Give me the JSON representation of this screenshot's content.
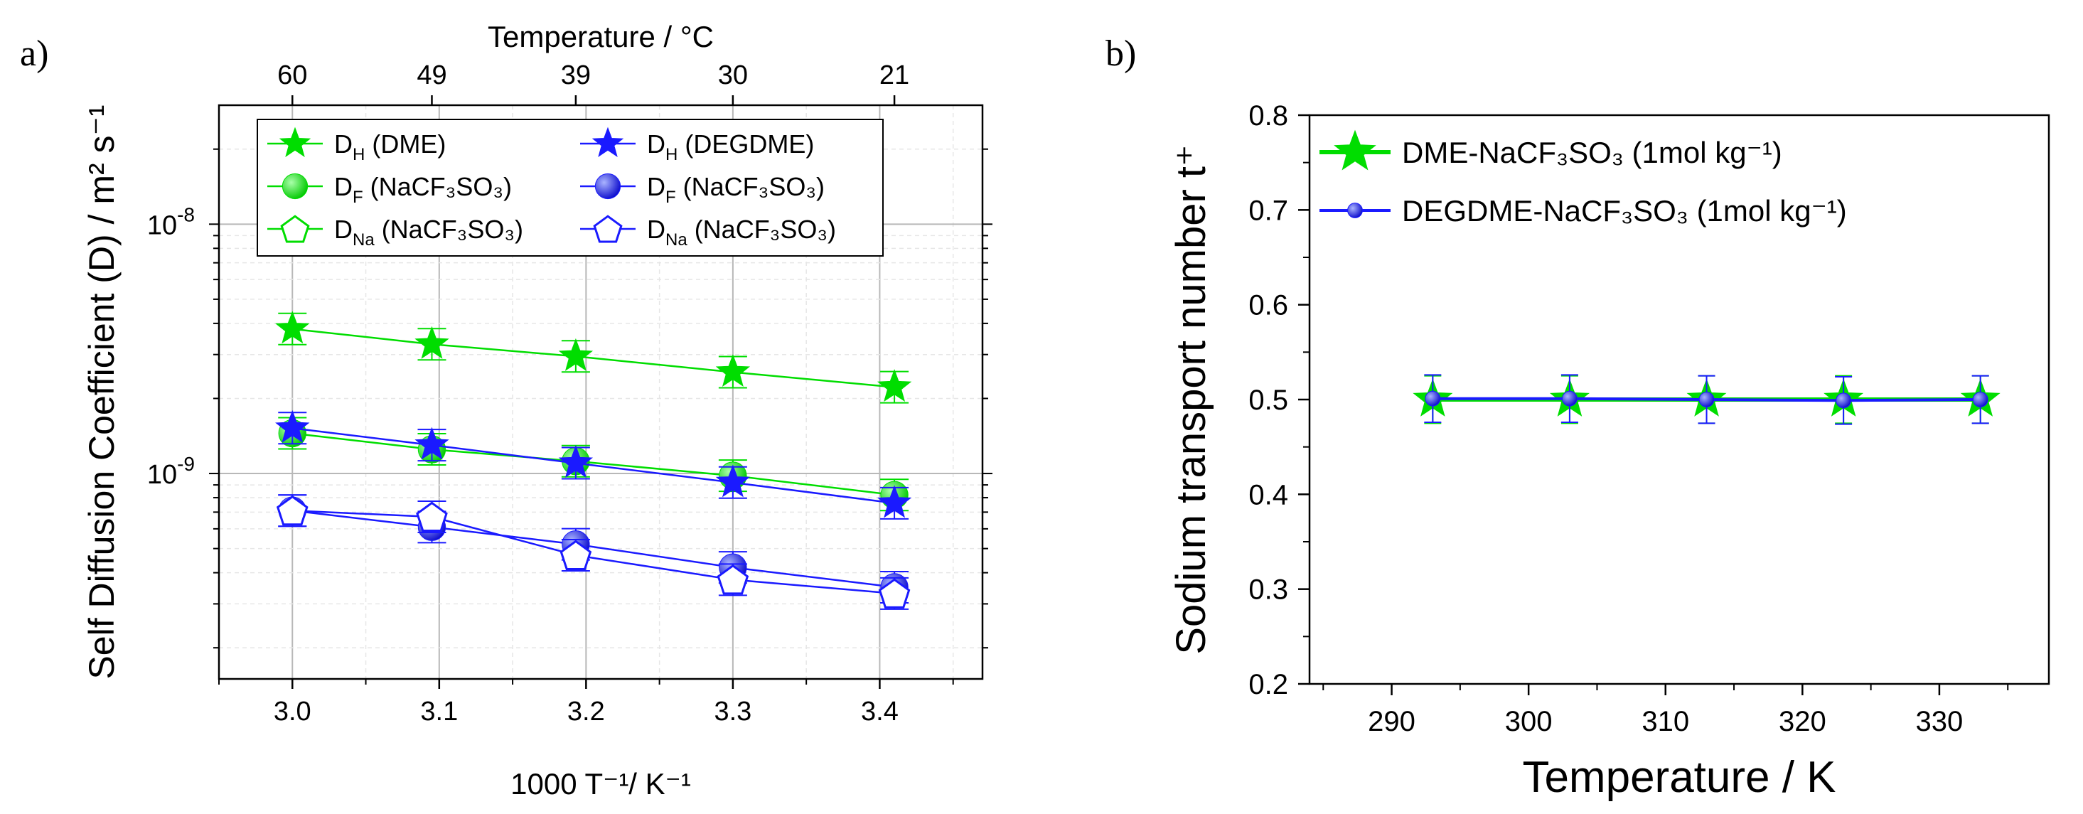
{
  "figure": {
    "panel_a_label": "a)",
    "panel_b_label": "b)"
  },
  "chart_data": [
    {
      "type": "line",
      "panel": "a)",
      "title": "",
      "xlabel": "1000 T⁻¹/ K⁻¹",
      "ylabel": "Self Diffusion Coefficient (D) / m² s⁻¹",
      "x2label": "Temperature / °C",
      "x2_ticks": [
        {
          "label": "60",
          "x": 3.0
        },
        {
          "label": "49",
          "x": 3.095
        },
        {
          "label": "39",
          "x": 3.193
        },
        {
          "label": "30",
          "x": 3.3
        },
        {
          "label": "21",
          "x": 3.41
        }
      ],
      "xlim": [
        2.95,
        3.47
      ],
      "ylim": [
        1.5e-10,
        3e-08
      ],
      "yscale": "log",
      "x_ticks": [
        "3.0",
        "3.1",
        "3.2",
        "3.3",
        "3.4"
      ],
      "y_tick_labels": [
        {
          "base": "10",
          "exp": "-8",
          "value": 1e-08
        },
        {
          "base": "10",
          "exp": "-9",
          "value": 1e-09
        }
      ],
      "grid": true,
      "legend_position": "top",
      "x": [
        3.0,
        3.095,
        3.193,
        3.3,
        3.41
      ],
      "series": [
        {
          "name": "D_H (DME)",
          "label_main": "D",
          "label_sub": "H",
          "label_rest": " (DME)",
          "color": "#00dd00",
          "marker": "star-filled",
          "x": [
            3.0,
            3.095,
            3.193,
            3.3,
            3.41
          ],
          "values": [
            3.8e-09,
            3.3e-09,
            2.95e-09,
            2.55e-09,
            2.22e-09
          ]
        },
        {
          "name": "D_F (NaCF3SO3)",
          "label_main": "D",
          "label_sub": "F",
          "label_rest": "  (NaCF₃SO₃)",
          "color": "#00dd00",
          "marker": "circle-filled",
          "x": [
            3.0,
            3.095,
            3.193,
            3.3,
            3.41
          ],
          "values": [
            1.45e-09,
            1.25e-09,
            1.12e-09,
            9.8e-10,
            8.2e-10
          ]
        },
        {
          "name": "D_Na (NaCF3SO3)",
          "label_main": "D",
          "label_sub": "Na",
          "label_rest": " (NaCF₃SO₃)",
          "color": "#00dd00",
          "marker": "pentagon-open",
          "x": [],
          "values": []
        },
        {
          "name": "D_H (DEGDME)",
          "label_main": "D",
          "label_sub": "H",
          "label_rest": " (DEGDME)",
          "color": "#1a1aff",
          "marker": "star-filled",
          "x": [
            3.0,
            3.095,
            3.193,
            3.3,
            3.41
          ],
          "values": [
            1.52e-09,
            1.3e-09,
            1.1e-09,
            9.2e-10,
            7.6e-10
          ]
        },
        {
          "name": "D_F (NaCF3SO3)",
          "label_main": "D",
          "label_sub": "F",
          "label_rest": " (NaCF₃SO₃)",
          "color": "#1a1aff",
          "marker": "circle-filled",
          "x": [
            3.0,
            3.095,
            3.193,
            3.3,
            3.41
          ],
          "values": [
            7.1e-10,
            6.1e-10,
            5.2e-10,
            4.2e-10,
            3.5e-10
          ]
        },
        {
          "name": "D_Na (NaCF3SO3)",
          "label_main": "D",
          "label_sub": "Na",
          "label_rest": " (NaCF₃SO₃)",
          "color": "#1a1aff",
          "marker": "pentagon-open",
          "x": [
            3.0,
            3.095,
            3.193,
            3.3,
            3.41
          ],
          "values": [
            7.1e-10,
            6.7e-10,
            4.7e-10,
            3.75e-10,
            3.3e-10
          ]
        }
      ]
    },
    {
      "type": "line",
      "panel": "b)",
      "title": "",
      "xlabel": "Temperature / K",
      "ylabel": "Sodium transport number t⁺",
      "xlim": [
        284,
        338
      ],
      "ylim": [
        0.2,
        0.8
      ],
      "x_ticks": [
        "290",
        "300",
        "310",
        "320",
        "330"
      ],
      "y_ticks": [
        "0.2",
        "0.3",
        "0.4",
        "0.5",
        "0.6",
        "0.7",
        "0.8"
      ],
      "grid": false,
      "legend_position": "top-left",
      "series": [
        {
          "name": "DME-NaCF₃SO₃ (1mol kg⁻¹)",
          "color": "#00dd00",
          "marker": "star-filled",
          "x": [
            293,
            303,
            313,
            323,
            333
          ],
          "values": [
            0.5,
            0.5,
            0.5,
            0.5,
            0.5
          ],
          "error": [
            0.025,
            0.025,
            0.025,
            0.025,
            0.025
          ]
        },
        {
          "name": "DEGDME-NaCF₃SO₃ (1mol kg⁻¹)",
          "color": "#1a1aff",
          "marker": "circle-filled",
          "x": [
            293,
            303,
            313,
            323,
            333
          ],
          "values": [
            0.501,
            0.501,
            0.5,
            0.499,
            0.5
          ],
          "error": [
            0.025,
            0.025,
            0.025,
            0.025,
            0.025
          ]
        }
      ]
    }
  ]
}
